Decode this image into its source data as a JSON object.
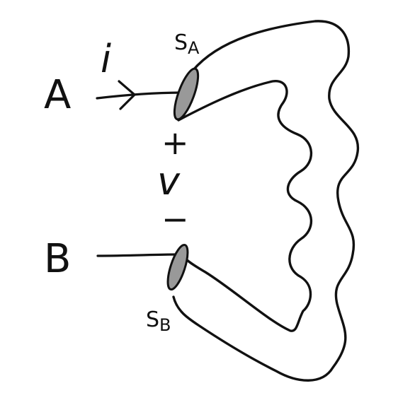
{
  "labels": {
    "terminal_a": "A",
    "terminal_b": "B",
    "current": "i",
    "surface_a": "S",
    "surface_a_sub": "A",
    "surface_b": "S",
    "surface_b_sub": "B",
    "plus": "+",
    "voltage": "v",
    "minus": "−"
  },
  "colors": {
    "stroke": "#111111",
    "surface_fill": "#999999",
    "background": "#ffffff"
  }
}
